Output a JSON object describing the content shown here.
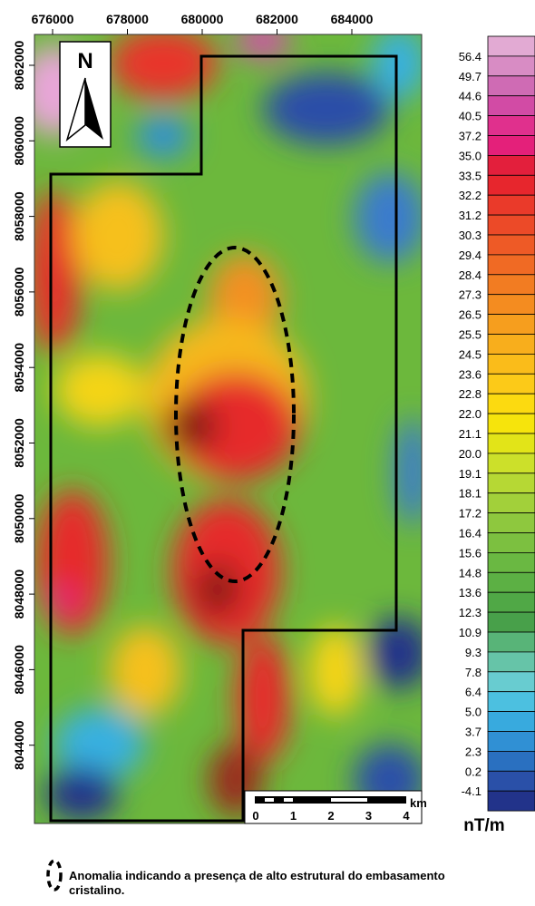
{
  "map": {
    "xticks": [
      676000,
      678000,
      680000,
      682000,
      684000
    ],
    "yticks": [
      8062000,
      8060000,
      8058000,
      8056000,
      8054000,
      8052000,
      8050000,
      8048000,
      8046000,
      8044000
    ],
    "north": "N",
    "scale_bar": {
      "labels": [
        "0",
        "1",
        "2",
        "3",
        "4"
      ],
      "unit": "km"
    }
  },
  "colorbar": {
    "labels": [
      "56.4",
      "49.7",
      "44.6",
      "40.5",
      "37.2",
      "35.0",
      "33.5",
      "32.2",
      "31.2",
      "30.3",
      "29.4",
      "28.4",
      "27.3",
      "26.5",
      "25.5",
      "24.5",
      "23.6",
      "22.8",
      "22.0",
      "21.1",
      "20.0",
      "19.1",
      "18.1",
      "17.2",
      "16.4",
      "15.6",
      "14.8",
      "13.6",
      "12.3",
      "10.9",
      "9.3",
      "7.8",
      "6.4",
      "5.0",
      "3.7",
      "2.3",
      "0.2",
      "-4.1"
    ],
    "colors": [
      "#e2aad3",
      "#d88cc4",
      "#cf6bb4",
      "#d24ba5",
      "#e0308d",
      "#e4207a",
      "#e31f3c",
      "#e7262d",
      "#ea3a2a",
      "#ec4a28",
      "#ee5a26",
      "#f06a24",
      "#f27c22",
      "#f48c20",
      "#f69e1e",
      "#f8ae1c",
      "#fabc1a",
      "#fcca18",
      "#fcda10",
      "#f6e40c",
      "#e2e418",
      "#cce02a",
      "#b6d834",
      "#a2d03a",
      "#8ec83e",
      "#7cc040",
      "#6ab842",
      "#5cb044",
      "#50a846",
      "#48a04a",
      "#58b478",
      "#66c4a8",
      "#68ccd0",
      "#4cc0e0",
      "#38aade",
      "#3090d4",
      "#2a70c0",
      "#2a50a8",
      "#22338a"
    ],
    "unit": "nT/m"
  },
  "legend": {
    "line1": "Anomalia indicando a presença de alto estrutural do embasamento",
    "line2": "cristalino."
  }
}
